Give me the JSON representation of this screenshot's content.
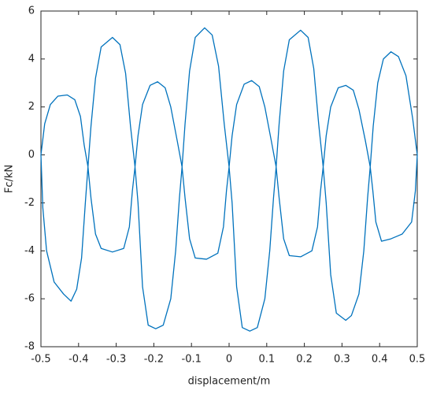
{
  "chart_data": {
    "type": "line",
    "xlabel": "displacement/m",
    "ylabel": "Fc/kN",
    "color": "#0072bd",
    "xlim": [
      -0.5,
      0.5
    ],
    "ylim": [
      -8,
      6
    ],
    "xticks": [
      -0.5,
      -0.4,
      -0.3,
      -0.2,
      -0.1,
      0,
      0.1,
      0.2,
      0.3,
      0.4,
      0.5
    ],
    "yticks": [
      -8,
      -6,
      -4,
      -2,
      0,
      2,
      4,
      6
    ],
    "x": [
      -0.5,
      -0.49,
      -0.475,
      -0.455,
      -0.43,
      -0.41,
      -0.395,
      -0.385,
      -0.375,
      -0.367,
      -0.355,
      -0.34,
      -0.31,
      -0.29,
      -0.275,
      -0.262,
      -0.25,
      -0.242,
      -0.23,
      -0.21,
      -0.19,
      -0.17,
      -0.155,
      -0.138,
      -0.125,
      -0.117,
      -0.105,
      -0.09,
      -0.065,
      -0.045,
      -0.028,
      -0.013,
      0,
      0.008,
      0.02,
      0.04,
      0.06,
      0.08,
      0.095,
      0.112,
      0.125,
      0.133,
      0.145,
      0.16,
      0.19,
      0.21,
      0.225,
      0.238,
      0.25,
      0.258,
      0.27,
      0.29,
      0.31,
      0.33,
      0.345,
      0.362,
      0.375,
      0.383,
      0.395,
      0.41,
      0.43,
      0.45,
      0.47,
      0.488,
      0.5,
      0.495,
      0.485,
      0.46,
      0.43,
      0.405,
      0.39,
      0.382,
      0.375,
      0.368,
      0.358,
      0.345,
      0.325,
      0.31,
      0.285,
      0.27,
      0.258,
      0.25,
      0.243,
      0.235,
      0.22,
      0.19,
      0.16,
      0.145,
      0.133,
      0.125,
      0.118,
      0.108,
      0.095,
      0.075,
      0.055,
      0.035,
      0.02,
      0.008,
      0,
      -0.007,
      -0.015,
      -0.03,
      -0.06,
      -0.09,
      -0.105,
      -0.117,
      -0.125,
      -0.132,
      -0.142,
      -0.155,
      -0.175,
      -0.195,
      -0.215,
      -0.23,
      -0.242,
      -0.25,
      -0.257,
      -0.265,
      -0.28,
      -0.31,
      -0.34,
      -0.355,
      -0.367,
      -0.375,
      -0.382,
      -0.392,
      -0.405,
      -0.42,
      -0.44,
      -0.465,
      -0.485,
      -0.495,
      -0.5
    ],
    "values": [
      0,
      1.3,
      2.1,
      2.45,
      2.5,
      2.3,
      1.6,
      0.4,
      -0.5,
      1.2,
      3.2,
      4.5,
      4.9,
      4.6,
      3.4,
      1.2,
      -0.5,
      0.8,
      2.1,
      2.9,
      3.05,
      2.8,
      2,
      0.6,
      -0.5,
      1.3,
      3.5,
      4.9,
      5.3,
      5,
      3.7,
      1.3,
      -0.5,
      0.8,
      2.1,
      2.95,
      3.1,
      2.85,
      2,
      0.6,
      -0.5,
      1.3,
      3.5,
      4.8,
      5.2,
      4.9,
      3.6,
      1.3,
      -0.5,
      0.8,
      2,
      2.8,
      2.9,
      2.7,
      1.9,
      0.6,
      -0.5,
      1.2,
      3,
      4,
      4.3,
      4.1,
      3.3,
      1.5,
      0,
      -1.5,
      -2.8,
      -3.3,
      -3.5,
      -3.6,
      -2.8,
      -1.5,
      -0.5,
      -1.8,
      -4,
      -5.8,
      -6.7,
      -6.9,
      -6.6,
      -5,
      -2,
      -0.5,
      -1.5,
      -3,
      -4,
      -4.25,
      -4.2,
      -3.5,
      -1.8,
      -0.5,
      -1.8,
      -4,
      -6,
      -7.2,
      -7.35,
      -7.2,
      -5.5,
      -2,
      -0.5,
      -1.5,
      -3,
      -4.1,
      -4.35,
      -4.3,
      -3.5,
      -1.8,
      -0.5,
      -1.8,
      -4,
      -6,
      -7.1,
      -7.25,
      -7.1,
      -5.5,
      -2,
      -0.5,
      -1.5,
      -3,
      -3.9,
      -4.05,
      -3.9,
      -3.3,
      -1.8,
      -0.5,
      -2,
      -4.3,
      -5.6,
      -6.1,
      -5.8,
      -5.3,
      -4,
      -2.2,
      0
    ]
  }
}
